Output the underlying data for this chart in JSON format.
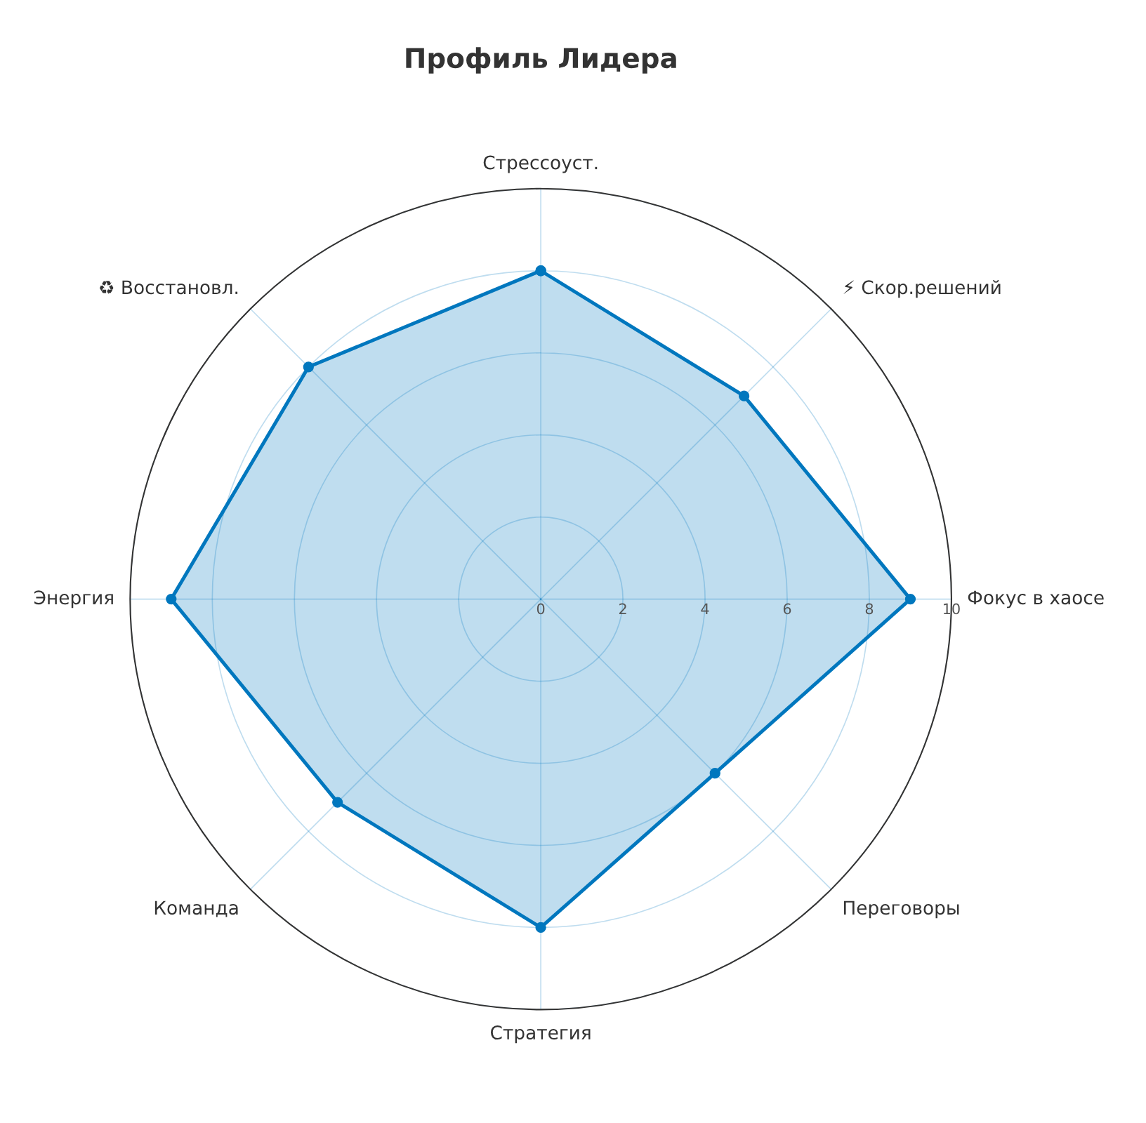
{
  "chart_data": {
    "type": "radar",
    "title": "Профиль Лидера",
    "categories": [
      "Стрессоуст.",
      "⚡ Скор.решений",
      "Фокус в хаосе",
      "Переговоры",
      "Стратегия",
      "Команда",
      "Энергия",
      "♻ Восстановл."
    ],
    "series": [
      {
        "color": "#0077be",
        "values": [
          8,
          7,
          9,
          6,
          8,
          7,
          9,
          8
        ]
      }
    ],
    "ylim": [
      0,
      10
    ],
    "yticks": [
      0,
      2,
      4,
      6,
      8,
      10
    ],
    "grid": true,
    "marker": "circle",
    "line_style": "solid"
  }
}
